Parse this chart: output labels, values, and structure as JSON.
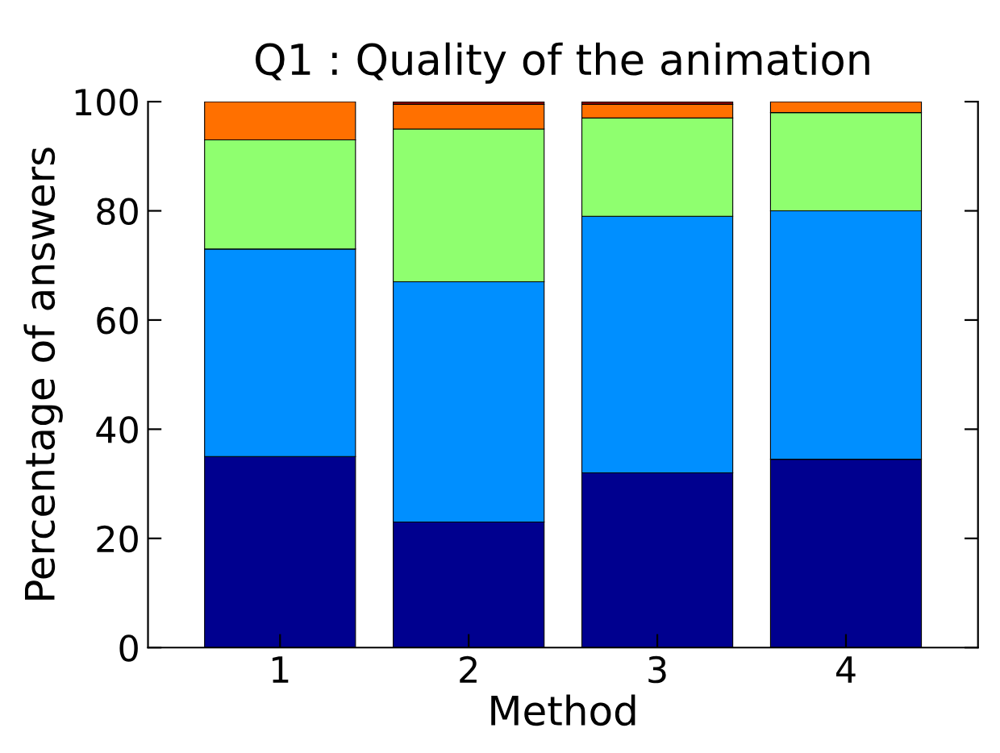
{
  "chart_data": {
    "type": "bar",
    "stacked": true,
    "title": "Q1 : Quality of the animation",
    "xlabel": "Method",
    "ylabel": "Percentage of answers",
    "categories": [
      "1",
      "2",
      "3",
      "4"
    ],
    "series": [
      {
        "color": "#00008f",
        "values": [
          35,
          23,
          32,
          34.5
        ]
      },
      {
        "color": "#008fff",
        "values": [
          38,
          44,
          47,
          45.5
        ]
      },
      {
        "color": "#8fff6f",
        "values": [
          20,
          28,
          18,
          18
        ]
      },
      {
        "color": "#ff7000",
        "values": [
          7,
          4.5,
          2.5,
          2
        ]
      },
      {
        "color": "#800000",
        "values": [
          null,
          0.5,
          0.5,
          null
        ]
      }
    ],
    "ylim": [
      0,
      100
    ],
    "yticks": [
      0,
      20,
      40,
      60,
      80,
      100
    ],
    "grid": false,
    "legend": false
  }
}
